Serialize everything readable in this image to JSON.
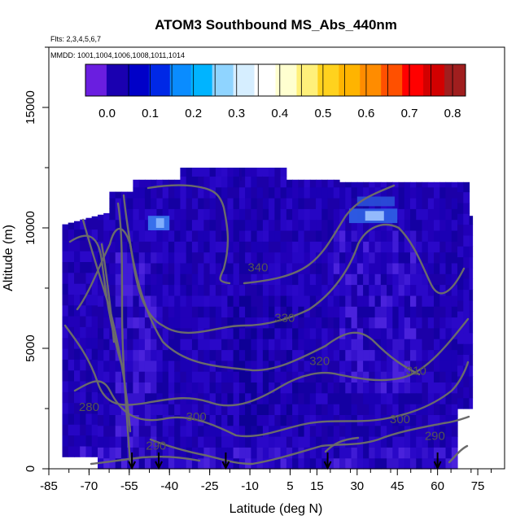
{
  "chart_data": {
    "type": "heatmap",
    "title": "ATOM3 Southbound MS_Abs_440nm",
    "subtitle_flights": "Flts: 2,3,4,5,6,7",
    "subtitle_dates": "MMDD: 1001,1004,1006,1008,1011,1014",
    "xlabel": "Latitude (deg N)",
    "ylabel": "Altitude (m)",
    "xlim": [
      -85,
      85
    ],
    "ylim": [
      0,
      17500
    ],
    "x_ticks": [
      -85,
      -70,
      -55,
      -40,
      -25,
      -10,
      5,
      15,
      30,
      45,
      60,
      75
    ],
    "y_ticks": [
      0,
      5000,
      10000,
      15000
    ],
    "colorbar": {
      "min": -0.05,
      "max": 0.83,
      "ticks": [
        0.0,
        0.1,
        0.2,
        0.3,
        0.4,
        0.5,
        0.6,
        0.7,
        0.8
      ],
      "tick_labels": [
        "0.0",
        "0.1",
        "0.2",
        "0.3",
        "0.4",
        "0.5",
        "0.6",
        "0.7",
        "0.8"
      ],
      "colors": [
        "#6a1ee0",
        "#1a00b0",
        "#0000c8",
        "#0028e6",
        "#0a8cff",
        "#00b4ff",
        "#8fd4ff",
        "#d6eeff",
        "#ffffff",
        "#ffffd0",
        "#fff07a",
        "#ffd21e",
        "#ffb400",
        "#ff8c00",
        "#ff5000",
        "#ff0000",
        "#d20000",
        "#a01e1e"
      ]
    },
    "field_description": "curtain of absorption values, mostly 0.0 to 0.05 (deep blue/violet), with a few light-blue patches near 10000-11000 m",
    "isentropes": [
      {
        "label": "280",
        "label_lat": -70,
        "label_alt": 2400
      },
      {
        "label": "290",
        "label_lat": -45,
        "label_alt": 800
      },
      {
        "label": "300",
        "label_lat": -30,
        "label_alt": 2000
      },
      {
        "label": "310",
        "label_lat": 52,
        "label_alt": 3900
      },
      {
        "label": "320",
        "label_lat": 16,
        "label_alt": 4300
      },
      {
        "label": "330",
        "label_lat": 3,
        "label_alt": 6100
      },
      {
        "label": "340",
        "label_lat": -7,
        "label_alt": 8200
      },
      {
        "label": "300",
        "label_lat": 46,
        "label_alt": 1900
      },
      {
        "label": "290",
        "label_lat": 59,
        "label_alt": 1200
      }
    ],
    "arrows_lat": [
      -54,
      -44,
      -19,
      19,
      60
    ]
  }
}
